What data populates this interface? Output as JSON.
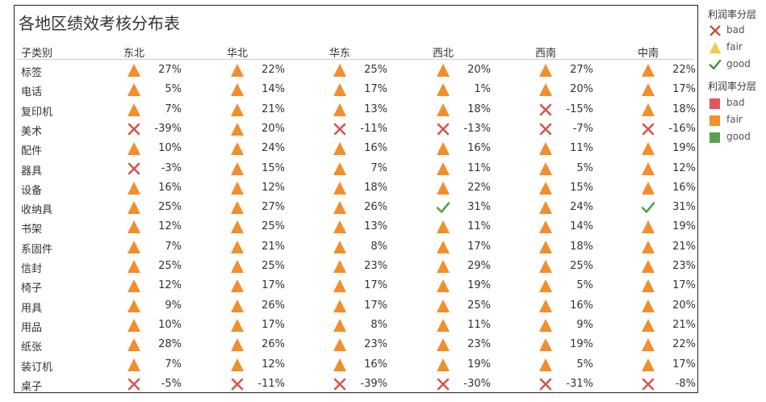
{
  "chart_data": {
    "type": "table",
    "title": "各地区绩效考核分布表",
    "row_header": "子类别",
    "columns": [
      "东北",
      "华北",
      "华东",
      "西北",
      "西南",
      "中南"
    ],
    "rows": [
      {
        "name": "标签",
        "values": [
          27,
          22,
          25,
          20,
          27,
          22
        ]
      },
      {
        "name": "电话",
        "values": [
          5,
          14,
          17,
          1,
          20,
          17
        ]
      },
      {
        "name": "复印机",
        "values": [
          7,
          21,
          13,
          18,
          -15,
          18
        ]
      },
      {
        "name": "美术",
        "values": [
          -39,
          20,
          -11,
          -13,
          -7,
          -16
        ]
      },
      {
        "name": "配件",
        "values": [
          10,
          24,
          16,
          16,
          11,
          19
        ]
      },
      {
        "name": "器具",
        "values": [
          -3,
          15,
          7,
          11,
          5,
          12
        ]
      },
      {
        "name": "设备",
        "values": [
          16,
          12,
          18,
          22,
          15,
          16
        ]
      },
      {
        "name": "收纳具",
        "values": [
          25,
          27,
          26,
          31,
          24,
          31
        ]
      },
      {
        "name": "书架",
        "values": [
          12,
          25,
          13,
          11,
          14,
          19
        ]
      },
      {
        "name": "系固件",
        "values": [
          7,
          21,
          8,
          17,
          18,
          21
        ]
      },
      {
        "name": "信封",
        "values": [
          25,
          25,
          23,
          29,
          25,
          23
        ]
      },
      {
        "name": "椅子",
        "values": [
          12,
          17,
          17,
          19,
          5,
          17
        ]
      },
      {
        "name": "用具",
        "values": [
          9,
          26,
          17,
          25,
          16,
          20
        ]
      },
      {
        "name": "用品",
        "values": [
          10,
          17,
          8,
          11,
          9,
          21
        ]
      },
      {
        "name": "纸张",
        "values": [
          28,
          26,
          23,
          23,
          19,
          22
        ]
      },
      {
        "name": "装订机",
        "values": [
          7,
          12,
          16,
          19,
          5,
          17
        ]
      },
      {
        "name": "桌子",
        "values": [
          -5,
          -11,
          -39,
          -30,
          -31,
          -8
        ]
      }
    ],
    "value_suffix": "%",
    "categories_rule": {
      "bad_below": 0,
      "good_above": 30
    },
    "colors": {
      "bad": "#d9534f",
      "fair": "#f28e2b",
      "good": "#59a14f"
    }
  },
  "legend": {
    "shape_title": "利润率分层",
    "shape_items": [
      {
        "label": "bad",
        "icon": "x-icon",
        "color": "#c9493f"
      },
      {
        "label": "fair",
        "icon": "triangle-icon",
        "color": "#f2c94c"
      },
      {
        "label": "good",
        "icon": "check-icon",
        "color": "#3e8e3e"
      }
    ],
    "color_title": "利润率分层",
    "color_items": [
      {
        "label": "bad",
        "color": "#e15759"
      },
      {
        "label": "fair",
        "color": "#f28e2b"
      },
      {
        "label": "good",
        "color": "#59a14f"
      }
    ]
  }
}
